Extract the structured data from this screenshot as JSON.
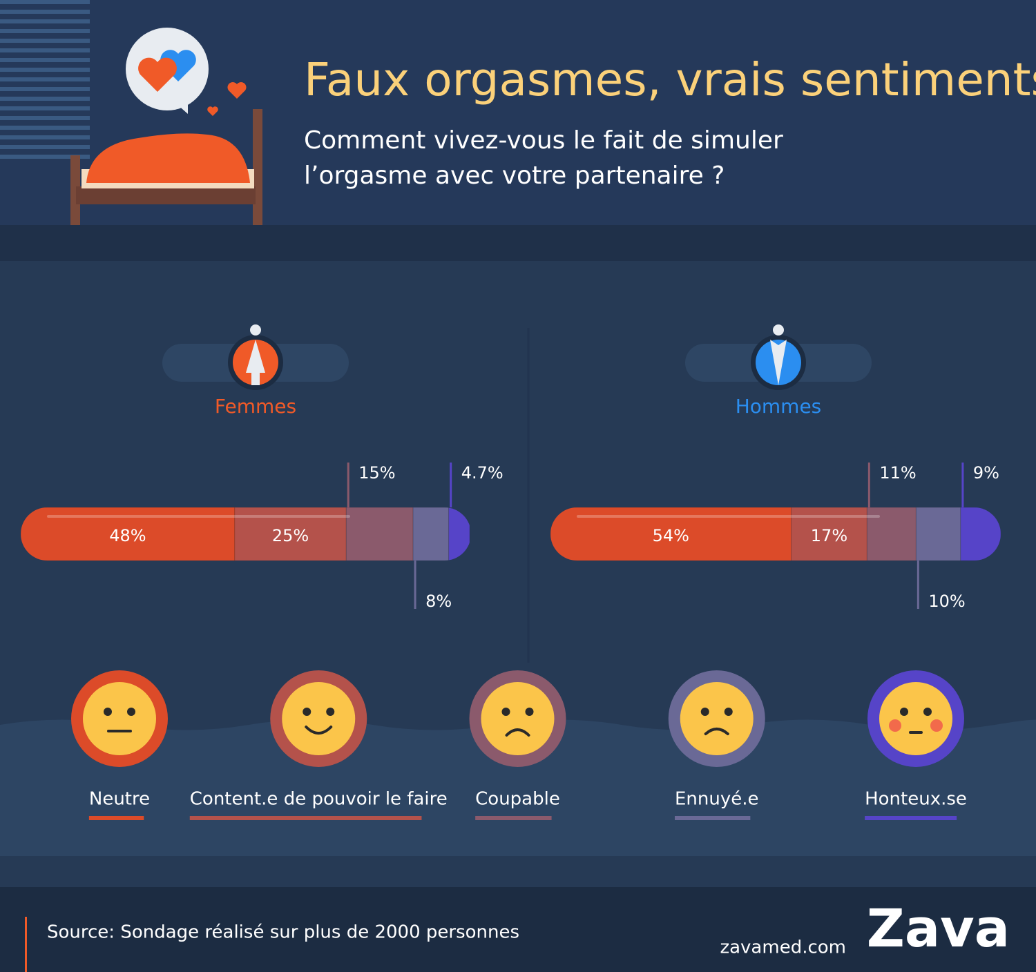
{
  "title": "Faux orgasmes, vrais sentiments",
  "subtitle": [
    "Comment vivez-vous le fait de simuler",
    "l’orgasme avec votre partenaire ?"
  ],
  "chart_data": {
    "type": "stacked-bar",
    "categories": [
      "Femmes",
      "Hommes"
    ],
    "category_colors": [
      "#f05a28",
      "#2b8ef0"
    ],
    "xlim": [
      0,
      101
    ],
    "series": [
      {
        "name": "Neutre",
        "color": "#dc4b29",
        "values": [
          48,
          54
        ],
        "value_labels": [
          "48%",
          "54%"
        ]
      },
      {
        "name": "Content.e de pouvoir le faire",
        "color": "#b4524b",
        "values": [
          25,
          17
        ],
        "value_labels": [
          "25%",
          "17%"
        ]
      },
      {
        "name": "Coupable",
        "color": "#8b5a6c",
        "values": [
          15,
          11
        ],
        "value_labels": [
          "15%",
          "11%"
        ]
      },
      {
        "name": "Ennuyé.e",
        "color": "#6a6996",
        "values": [
          8,
          10
        ],
        "value_labels": [
          "8%",
          "10%"
        ]
      },
      {
        "name": "Honteux.se",
        "color": "#5644c8",
        "values": [
          4.7,
          9
        ],
        "value_labels": [
          "4.7%",
          "9%"
        ]
      }
    ]
  },
  "footer": {
    "source": "Source: Sondage réalisé sur plus de 2000 personnes",
    "website": "zavamed.com",
    "brand": "Zava"
  }
}
